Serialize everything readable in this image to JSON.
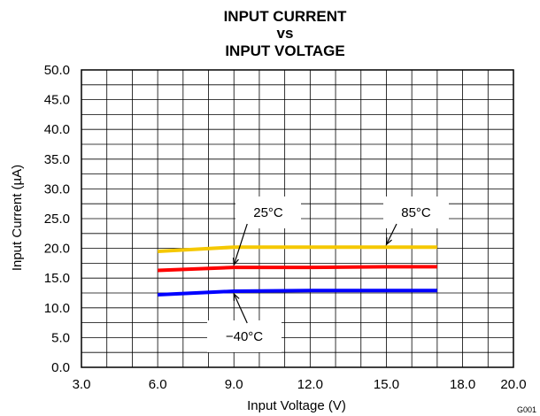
{
  "chart_data": {
    "type": "line",
    "title_lines": [
      "INPUT CURRENT",
      "vs",
      "INPUT VOLTAGE"
    ],
    "xlabel": "Input Voltage (V)",
    "ylabel": "Input Current (µA)",
    "xlim": [
      3.0,
      20.0
    ],
    "ylim": [
      0.0,
      50.0
    ],
    "x_ticks": [
      "3.0",
      "6.0",
      "9.0",
      "12.0",
      "15.0",
      "18.0",
      "20.0"
    ],
    "y_ticks": [
      "0.0",
      "5.0",
      "10.0",
      "15.0",
      "20.0",
      "25.0",
      "30.0",
      "35.0",
      "40.0",
      "45.0",
      "50.0"
    ],
    "grid": true,
    "series": [
      {
        "name": "85°C",
        "color": "#f5c800",
        "x": [
          6.0,
          9.0,
          12.0,
          15.0,
          17.0
        ],
        "y": [
          19.5,
          20.2,
          20.2,
          20.2,
          20.2
        ]
      },
      {
        "name": "25°C",
        "color": "#ff0000",
        "x": [
          6.0,
          9.0,
          12.0,
          15.0,
          17.0
        ],
        "y": [
          16.3,
          16.8,
          16.8,
          16.9,
          16.9
        ]
      },
      {
        "name": "−40°C",
        "color": "#0000ff",
        "x": [
          6.0,
          9.0,
          12.0,
          15.0,
          17.0
        ],
        "y": [
          12.2,
          12.8,
          12.9,
          12.9,
          12.9
        ]
      }
    ],
    "annotations": [
      {
        "label": "25°C",
        "series": "25°C",
        "point_x": 9.0,
        "point_y": 16.8
      },
      {
        "label": "85°C",
        "series": "85°C",
        "point_x": 15.0,
        "point_y": 20.2
      },
      {
        "label": "−40°C",
        "series": "−40°C",
        "point_x": 9.0,
        "point_y": 12.8
      }
    ],
    "figure_code": "G001"
  }
}
